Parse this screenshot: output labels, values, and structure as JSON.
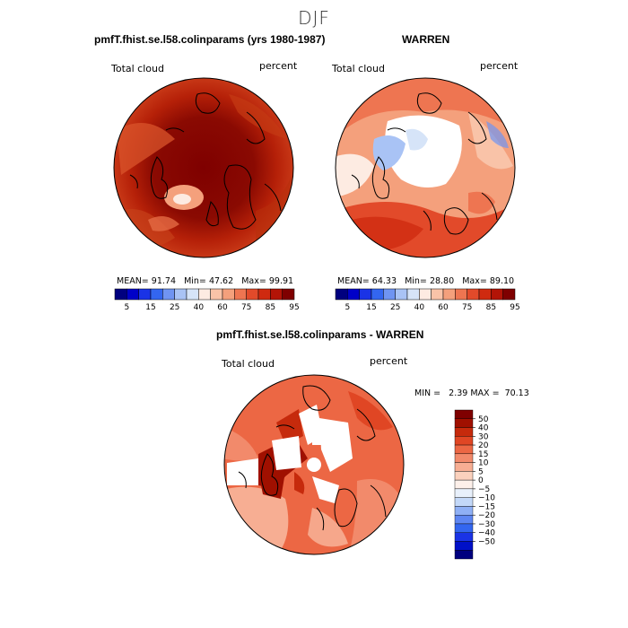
{
  "figure": {
    "season": "DJF"
  },
  "panels": [
    {
      "title": "pmfT.fhist.se.l58.colinparams (yrs 1980-1987)",
      "variable": "Total cloud",
      "units": "percent",
      "stats": {
        "mean_label": "MEAN=",
        "mean": "91.74",
        "min_label": "Min=",
        "min": "47.62",
        "max_label": "Max=",
        "max": "99.91"
      }
    },
    {
      "title": "WARREN",
      "variable": "Total cloud",
      "units": "percent",
      "stats": {
        "mean_label": "MEAN=",
        "mean": "64.33",
        "min_label": "Min=",
        "min": "28.80",
        "max_label": "Max=",
        "max": "89.10"
      }
    },
    {
      "title": "pmfT.fhist.se.l58.colinparams - WARREN",
      "variable": "Total cloud",
      "units": "percent",
      "minmax": {
        "min_label": "MIN =",
        "min": "2.39",
        "max_label": "MAX =",
        "max": "70.13"
      }
    }
  ],
  "colorbar_abs": {
    "colors": [
      "#00007f",
      "#0000c8",
      "#1a33e6",
      "#3366f0",
      "#6f94f2",
      "#a9c3f5",
      "#d6e4f8",
      "#fdebe2",
      "#f9c3a8",
      "#f4a07c",
      "#ee7551",
      "#e24a2a",
      "#cf2a10",
      "#b31407",
      "#7f0000"
    ],
    "tick_labels": [
      "5",
      "15",
      "25",
      "40",
      "60",
      "75",
      "85",
      "95"
    ]
  },
  "colorbar_diff": {
    "colors": [
      "#00007f",
      "#0010c8",
      "#1a33e6",
      "#3366f0",
      "#5e86f2",
      "#8fb0f5",
      "#c3d8f8",
      "#e8f0fb",
      "#fdf0ea",
      "#fbd1bd",
      "#f7ae93",
      "#f28a6b",
      "#ec6744",
      "#e04624",
      "#c62a0c",
      "#a01000",
      "#7f0000"
    ],
    "tick_labels": [
      "50",
      "40",
      "30",
      "20",
      "15",
      "10",
      "5",
      "0",
      "−5",
      "−10",
      "−15",
      "−20",
      "−30",
      "−40",
      "−50"
    ]
  }
}
